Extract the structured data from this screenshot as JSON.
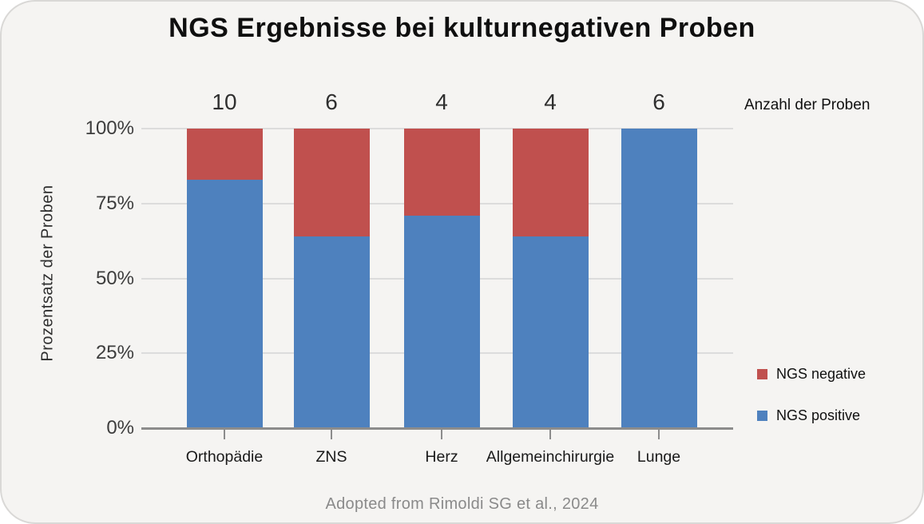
{
  "chart_data": {
    "type": "bar",
    "stacked": true,
    "title": "NGS Ergebnisse bei kulturnegativen Proben",
    "ylabel": "Prozentsatz der Proben",
    "xlabel": "",
    "categories": [
      "Orthopädie",
      "ZNS",
      "Herz",
      "Allgemeinchirurgie",
      "Lunge"
    ],
    "counts": [
      10,
      6,
      4,
      4,
      6
    ],
    "counts_label": "Anzahl der Proben",
    "series": [
      {
        "name": "NGS positive",
        "color": "#4e81be",
        "values": [
          83,
          64,
          71,
          64,
          100
        ]
      },
      {
        "name": "NGS negative",
        "color": "#c0504e",
        "values": [
          17,
          36,
          29,
          36,
          0
        ]
      }
    ],
    "legend": [
      {
        "label": "NGS negative",
        "color": "#c0504e"
      },
      {
        "label": "NGS positive",
        "color": "#4e81be"
      }
    ],
    "yticks": [
      0,
      25,
      50,
      75,
      100
    ],
    "ytick_labels": [
      "0%",
      "25%",
      "50%",
      "75%",
      "100%"
    ],
    "ylim": [
      0,
      100
    ],
    "grid": "horizontal",
    "legend_position": "right",
    "source": "Adopted from Rimoldi SG et al., 2024"
  },
  "colors": {
    "background": "#f5f4f2",
    "grid": "#dcdcdc",
    "axis": "#8c8c8c",
    "title_text": "#0f0f0f",
    "tick_text": "#3d3d3d",
    "muted_text": "#8a8a8a"
  }
}
